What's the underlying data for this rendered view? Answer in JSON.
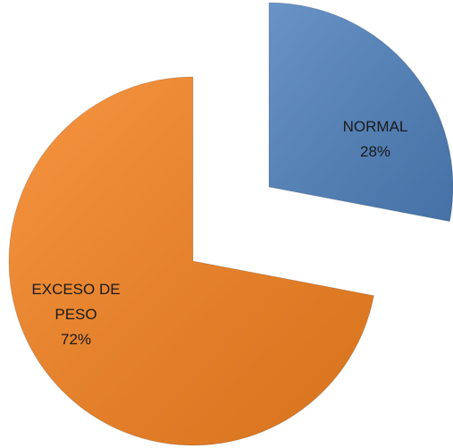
{
  "chart_data": {
    "type": "pie",
    "categories": [
      "NORMAL",
      "EXCESO DE PESO"
    ],
    "values": [
      28,
      72
    ],
    "value_labels": [
      "28%",
      "72%"
    ],
    "colors": [
      "#4f81bd",
      "#f58220"
    ]
  }
}
